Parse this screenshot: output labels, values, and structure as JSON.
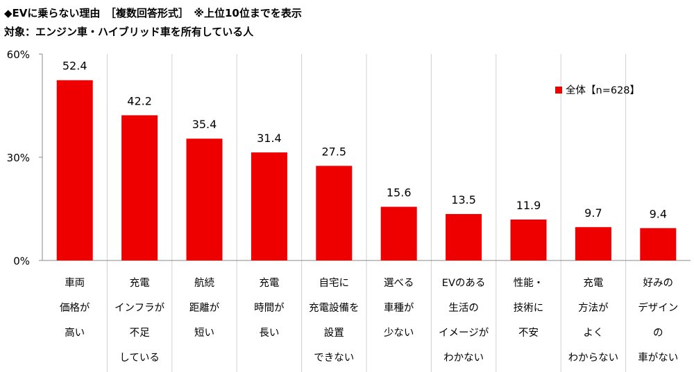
{
  "title_line1": "◆EVに乗らない理由　［複数回答形式］　※上位10位までを表示",
  "title_line2": "対象：エンジン車・ハイブリッド車を所有している人",
  "chart_data": {
    "type": "bar",
    "categories": [
      [
        "車両",
        "価格が",
        "高い"
      ],
      [
        "充電",
        "インフラが",
        "不足",
        "している"
      ],
      [
        "航続",
        "距離が",
        "短い"
      ],
      [
        "充電",
        "時間が",
        "長い"
      ],
      [
        "自宅に",
        "充電設備を",
        "設置",
        "できない"
      ],
      [
        "選べる",
        "車種が",
        "少ない"
      ],
      [
        "EVのある",
        "生活の",
        "イメージが",
        "わかない"
      ],
      [
        "性能・",
        "技術に",
        "不安"
      ],
      [
        "充電",
        "方法が",
        "よく",
        "わからない"
      ],
      [
        "好みの",
        "デザイン",
        "の",
        "車がない"
      ]
    ],
    "series": [
      {
        "name": "全体【n=628】",
        "values": [
          52.4,
          42.2,
          35.4,
          31.4,
          27.5,
          15.6,
          13.5,
          11.9,
          9.7,
          9.4
        ],
        "color": "#EE0000"
      }
    ],
    "ylim": [
      0,
      60
    ],
    "yticks": [
      "0%",
      "30%",
      "60%"
    ],
    "ytick_values": [
      0,
      30,
      60
    ],
    "legend": "top-right",
    "grid": "vertical category separators"
  }
}
